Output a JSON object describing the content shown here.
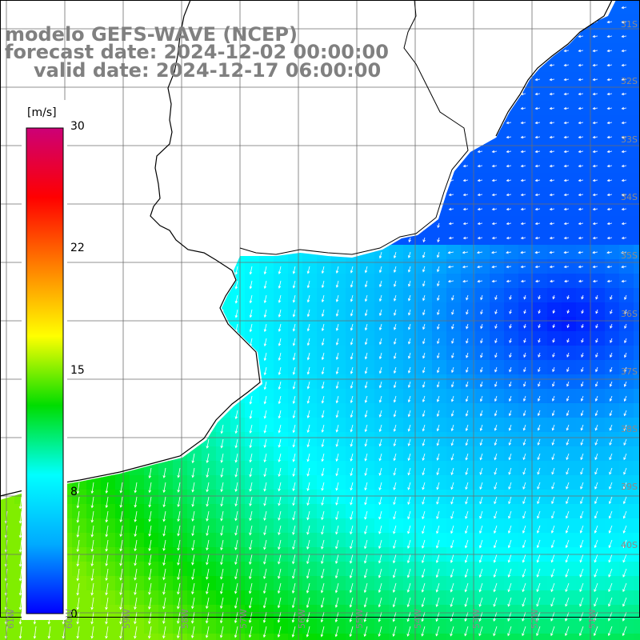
{
  "title": {
    "line1": "modelo GEFS-WAVE (NCEP)",
    "line2": "forecast date: 2024-12-02 00:00:00",
    "line3": "valid date: 2024-12-17 06:00:00"
  },
  "colorbar": {
    "unit": "[m/s]",
    "ticks": [
      "30",
      "22",
      "15",
      "8",
      "0"
    ],
    "stops": [
      "#0000ff",
      "#00aaff",
      "#00ffff",
      "#00dd00",
      "#ffff00",
      "#ff8000",
      "#ff0000",
      "#cc0077"
    ]
  },
  "latitude_labels": [
    "31S",
    "32S",
    "33S",
    "34S",
    "35S",
    "36S",
    "37S",
    "38S",
    "39S",
    "40S"
  ],
  "longitude_labels": [
    "61W",
    "60W",
    "59W",
    "58W",
    "57W",
    "56W",
    "55W",
    "54W",
    "53W",
    "52W",
    "51W"
  ],
  "colors": {
    "land": "#ffffff",
    "grid": "#6e6e6e",
    "coast": "#000000",
    "title": "#808080"
  }
}
